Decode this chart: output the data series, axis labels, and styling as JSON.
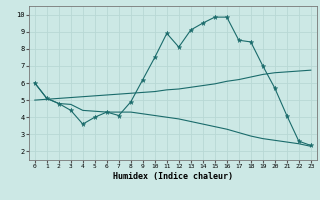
{
  "xlabel": "Humidex (Indice chaleur)",
  "xlim": [
    -0.5,
    23.5
  ],
  "ylim": [
    1.5,
    10.5
  ],
  "xticks": [
    0,
    1,
    2,
    3,
    4,
    5,
    6,
    7,
    8,
    9,
    10,
    11,
    12,
    13,
    14,
    15,
    16,
    17,
    18,
    19,
    20,
    21,
    22,
    23
  ],
  "yticks": [
    2,
    3,
    4,
    5,
    6,
    7,
    8,
    9,
    10
  ],
  "bg_color": "#cce8e5",
  "grid_color": "#b8d8d5",
  "line_color": "#1a6b6b",
  "line1_x": [
    0,
    1,
    2,
    3,
    4,
    5,
    6,
    7,
    8,
    9,
    10,
    11,
    12,
    13,
    14,
    15,
    16,
    17,
    18,
    19,
    20,
    21,
    22,
    23
  ],
  "line1_y": [
    6.0,
    5.1,
    4.8,
    4.4,
    3.6,
    4.0,
    4.3,
    4.1,
    4.9,
    6.2,
    7.5,
    8.9,
    8.1,
    9.1,
    9.5,
    9.85,
    9.85,
    8.5,
    8.4,
    7.0,
    5.7,
    4.1,
    2.6,
    2.35
  ],
  "line2_x": [
    0,
    1,
    2,
    3,
    4,
    5,
    6,
    7,
    8,
    9,
    10,
    11,
    12,
    13,
    14,
    15,
    16,
    17,
    18,
    19,
    20,
    21,
    22,
    23
  ],
  "line2_y": [
    5.0,
    5.05,
    5.1,
    5.15,
    5.2,
    5.25,
    5.3,
    5.35,
    5.4,
    5.45,
    5.5,
    5.6,
    5.65,
    5.75,
    5.85,
    5.95,
    6.1,
    6.2,
    6.35,
    6.5,
    6.6,
    6.65,
    6.7,
    6.75
  ],
  "line3_x": [
    0,
    1,
    2,
    3,
    4,
    5,
    6,
    7,
    8,
    9,
    10,
    11,
    12,
    13,
    14,
    15,
    16,
    17,
    18,
    19,
    20,
    21,
    22,
    23
  ],
  "line3_y": [
    6.0,
    5.1,
    4.8,
    4.75,
    4.4,
    4.35,
    4.3,
    4.3,
    4.3,
    4.2,
    4.1,
    4.0,
    3.9,
    3.75,
    3.6,
    3.45,
    3.3,
    3.1,
    2.9,
    2.75,
    2.65,
    2.55,
    2.45,
    2.3
  ]
}
